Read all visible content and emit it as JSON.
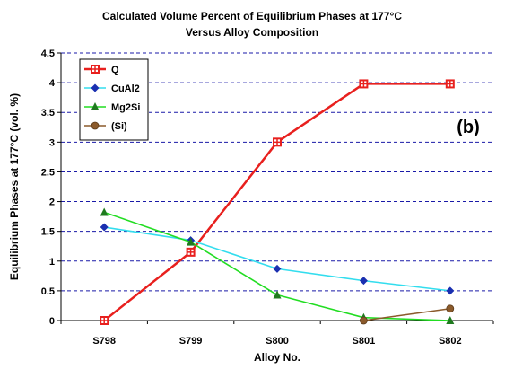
{
  "chart_data": {
    "type": "line",
    "title": "Calculated Volume Percent of Equilibrium Phases at 177°C",
    "subtitle": "Versus Alloy Composition",
    "xlabel": "Alloy No.",
    "ylabel": "Equilibrium Phases at 177°C  (vol. %)",
    "categories": [
      "S798",
      "S799",
      "S800",
      "S801",
      "S802"
    ],
    "ylim": [
      0,
      4.5
    ],
    "yticks": [
      "0",
      "0.5",
      "1",
      "1.5",
      "2",
      "2.5",
      "3",
      "3.5",
      "4",
      "4.5"
    ],
    "grid": "horizontal dashed",
    "legend_position": "top-left",
    "panel_label": "(b)",
    "series": [
      {
        "name": "Q",
        "color": "#e8201e",
        "marker": "square",
        "values": [
          0,
          1.15,
          3.0,
          3.98,
          3.98
        ]
      },
      {
        "name": "CuAl2",
        "color": "#33ddee",
        "marker": "diamond",
        "values": [
          1.57,
          1.35,
          0.87,
          0.67,
          0.5
        ]
      },
      {
        "name": "Mg2Si",
        "color": "#22dd22",
        "marker": "triangle",
        "values": [
          1.82,
          1.32,
          0.43,
          0.05,
          0.0
        ]
      },
      {
        "name": "(Si)",
        "color": "#8b5a2b",
        "marker": "circle",
        "values": [
          null,
          null,
          null,
          0.0,
          0.2
        ]
      }
    ]
  }
}
